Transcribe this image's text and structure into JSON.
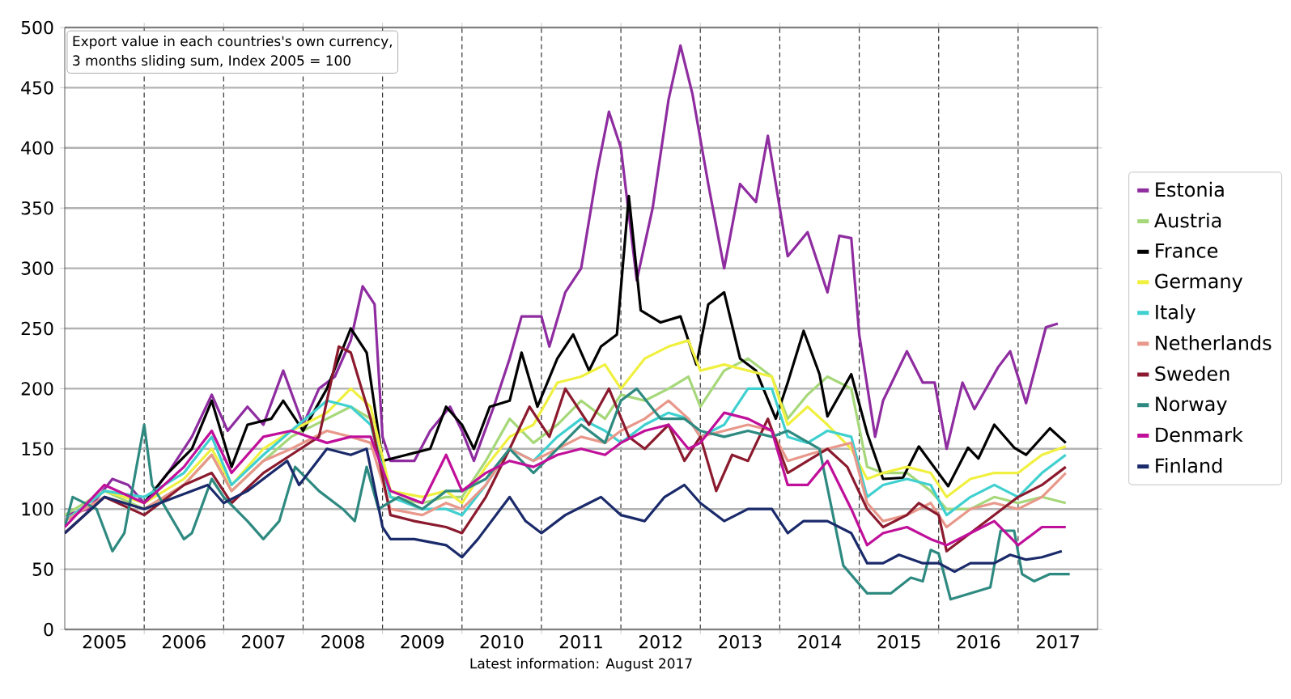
{
  "chart_data": {
    "type": "line",
    "annotations": [
      "Export value in each countries's own currency,",
      "3 months sliding sum, Index 2005 = 100"
    ],
    "xlabel": "Latest information: August 2017",
    "xlim": [
      2005,
      2018
    ],
    "ylim": [
      0,
      500
    ],
    "yticks": [
      0,
      50,
      100,
      150,
      200,
      250,
      300,
      350,
      400,
      450,
      500
    ],
    "xticks": [
      {
        "value": 2005.5,
        "label": "2005"
      },
      {
        "value": 2006,
        "label": null
      },
      {
        "value": 2006.5,
        "label": "2006"
      },
      {
        "value": 2007,
        "label": null
      },
      {
        "value": 2007.5,
        "label": "2007"
      },
      {
        "value": 2008,
        "label": null
      },
      {
        "value": 2008.5,
        "label": "2008"
      },
      {
        "value": 2009,
        "label": null
      },
      {
        "value": 2009.5,
        "label": "2009"
      },
      {
        "value": 2010,
        "label": null
      },
      {
        "value": 2010.5,
        "label": "2010"
      },
      {
        "value": 2011,
        "label": null
      },
      {
        "value": 2011.5,
        "label": "2011"
      },
      {
        "value": 2012,
        "label": null
      },
      {
        "value": 2012.5,
        "label": "2012"
      },
      {
        "value": 2013,
        "label": null
      },
      {
        "value": 2013.5,
        "label": "2013"
      },
      {
        "value": 2014,
        "label": null
      },
      {
        "value": 2014.5,
        "label": "2014"
      },
      {
        "value": 2015,
        "label": null
      },
      {
        "value": 2015.5,
        "label": "2015"
      },
      {
        "value": 2016,
        "label": null
      },
      {
        "value": 2016.5,
        "label": "2016"
      },
      {
        "value": 2017,
        "label": null
      },
      {
        "value": 2017.5,
        "label": "2017"
      }
    ],
    "grid": true,
    "legend": "right",
    "x": [
      2005.0,
      2005.5,
      2006.0,
      2006.5,
      2006.85,
      2007.1,
      2007.5,
      2007.85,
      2008.3,
      2008.6,
      2008.85,
      2009.1,
      2009.5,
      2009.8,
      2010.0,
      2010.3,
      2010.6,
      2010.9,
      2011.2,
      2011.5,
      2011.8,
      2012.0,
      2012.3,
      2012.6,
      2012.85,
      2013.0,
      2013.3,
      2013.6,
      2013.9,
      2014.1,
      2014.35,
      2014.6,
      2014.9,
      2015.1,
      2015.3,
      2015.6,
      2015.9,
      2016.1,
      2016.4,
      2016.7,
      2017.0,
      2017.3,
      2017.6
    ],
    "series": [
      {
        "name": "Estonia",
        "color": "#8e2ca0",
        "x": [
          2005.0,
          2005.3,
          2005.6,
          2005.8,
          2006.0,
          2006.3,
          2006.6,
          2006.85,
          2007.05,
          2007.3,
          2007.5,
          2007.75,
          2008.0,
          2008.2,
          2008.4,
          2008.6,
          2008.75,
          2008.9,
          2009.0,
          2009.1,
          2009.4,
          2009.6,
          2009.85,
          2010.0,
          2010.15,
          2010.4,
          2010.6,
          2010.75,
          2011.0,
          2011.1,
          2011.3,
          2011.5,
          2011.7,
          2011.85,
          2012.0,
          2012.2,
          2012.4,
          2012.6,
          2012.75,
          2012.9,
          2013.1,
          2013.3,
          2013.5,
          2013.7,
          2013.85,
          2014.1,
          2014.35,
          2014.6,
          2014.75,
          2014.9,
          2015.0,
          2015.2,
          2015.3,
          2015.6,
          2015.8,
          2015.95,
          2016.1,
          2016.3,
          2016.45,
          2016.75,
          2016.9,
          2017.1,
          2017.35,
          2017.5
        ],
        "values": [
          95,
          100,
          125,
          120,
          105,
          130,
          160,
          195,
          165,
          185,
          170,
          215,
          170,
          200,
          210,
          240,
          285,
          270,
          160,
          140,
          140,
          165,
          185,
          165,
          140,
          185,
          225,
          260,
          260,
          235,
          280,
          300,
          380,
          430,
          400,
          290,
          350,
          440,
          485,
          445,
          370,
          300,
          370,
          355,
          410,
          310,
          330,
          280,
          327,
          325,
          245,
          160,
          190,
          231,
          205,
          205,
          150,
          205,
          183,
          218,
          231,
          188,
          251,
          254
        ]
      },
      {
        "name": "Austria",
        "color": "#a6d87a",
        "values": [
          95,
          115,
          100,
          120,
          145,
          115,
          140,
          160,
          175,
          185,
          175,
          110,
          105,
          110,
          110,
          140,
          175,
          155,
          170,
          190,
          175,
          195,
          190,
          200,
          210,
          185,
          215,
          225,
          210,
          175,
          195,
          210,
          200,
          135,
          130,
          130,
          115,
          100,
          100,
          110,
          105,
          110,
          105
        ]
      },
      {
        "name": "France",
        "color": "#000000",
        "x": [
          2006.0,
          2006.3,
          2006.6,
          2006.85,
          2007.1,
          2007.3,
          2007.6,
          2007.75,
          2008.0,
          2008.3,
          2008.6,
          2008.8,
          2009.0,
          2009.3,
          2009.6,
          2009.8,
          2010.0,
          2010.15,
          2010.35,
          2010.6,
          2010.75,
          2010.95,
          2011.2,
          2011.4,
          2011.6,
          2011.75,
          2011.95,
          2012.1,
          2012.25,
          2012.5,
          2012.75,
          2012.95,
          2013.1,
          2013.3,
          2013.5,
          2013.7,
          2013.95,
          2014.1,
          2014.3,
          2014.5,
          2014.6,
          2014.9,
          2015.1,
          2015.3,
          2015.55,
          2015.75,
          2016.12,
          2016.37,
          2016.5,
          2016.7,
          2016.95,
          2017.1,
          2017.4,
          2017.6
        ],
        "values": [
          105,
          130,
          150,
          190,
          135,
          170,
          175,
          190,
          165,
          200,
          250,
          230,
          140,
          145,
          150,
          185,
          170,
          150,
          185,
          190,
          230,
          185,
          225,
          245,
          215,
          235,
          245,
          360,
          265,
          255,
          260,
          220,
          270,
          280,
          225,
          215,
          175,
          205,
          248,
          212,
          177,
          212,
          163,
          125,
          126,
          152,
          119,
          151,
          142,
          170,
          151,
          145,
          167,
          155
        ]
      },
      {
        "name": "Germany",
        "color": "#f0f040",
        "values": [
          90,
          115,
          105,
          125,
          150,
          120,
          150,
          165,
          180,
          200,
          185,
          115,
          110,
          115,
          105,
          135,
          160,
          170,
          205,
          210,
          220,
          200,
          225,
          235,
          240,
          215,
          220,
          215,
          210,
          170,
          185,
          170,
          150,
          125,
          130,
          135,
          130,
          110,
          125,
          130,
          130,
          145,
          152
        ]
      },
      {
        "name": "Italy",
        "color": "#40d0d0",
        "values": [
          90,
          115,
          110,
          130,
          160,
          120,
          145,
          165,
          190,
          185,
          170,
          110,
          100,
          100,
          95,
          120,
          150,
          140,
          160,
          175,
          165,
          155,
          170,
          180,
          175,
          160,
          170,
          200,
          200,
          160,
          155,
          165,
          160,
          110,
          120,
          125,
          120,
          95,
          110,
          120,
          110,
          130,
          145
        ]
      },
      {
        "name": "Netherlands",
        "color": "#e8988a",
        "values": [
          90,
          110,
          100,
          120,
          145,
          115,
          140,
          150,
          165,
          160,
          155,
          100,
          95,
          105,
          100,
          120,
          150,
          140,
          150,
          160,
          155,
          165,
          175,
          190,
          175,
          160,
          165,
          170,
          165,
          140,
          145,
          150,
          155,
          105,
          90,
          95,
          105,
          85,
          100,
          105,
          100,
          110,
          130
        ]
      },
      {
        "name": "Sweden",
        "color": "#8b1a2e",
        "x": [
          2005.0,
          2005.5,
          2006.0,
          2006.5,
          2006.85,
          2007.1,
          2007.5,
          2007.85,
          2008.2,
          2008.45,
          2008.6,
          2008.85,
          2009.1,
          2009.4,
          2009.8,
          2010.0,
          2010.3,
          2010.6,
          2010.85,
          2011.1,
          2011.3,
          2011.6,
          2011.85,
          2012.1,
          2012.3,
          2012.6,
          2012.8,
          2013.0,
          2013.2,
          2013.4,
          2013.6,
          2013.85,
          2014.1,
          2014.35,
          2014.6,
          2014.85,
          2015.1,
          2015.3,
          2015.6,
          2015.75,
          2016.0,
          2016.1,
          2016.4,
          2016.7,
          2017.0,
          2017.3,
          2017.6
        ],
        "values": [
          80,
          110,
          95,
          120,
          130,
          105,
          130,
          145,
          160,
          235,
          230,
          175,
          95,
          90,
          85,
          80,
          110,
          150,
          185,
          160,
          200,
          170,
          200,
          160,
          150,
          170,
          140,
          160,
          115,
          145,
          140,
          175,
          130,
          140,
          150,
          135,
          100,
          85,
          95,
          105,
          95,
          65,
          80,
          95,
          110,
          120,
          135
        ]
      },
      {
        "name": "Norway",
        "color": "#2e8a80",
        "x": [
          2005.0,
          2005.1,
          2005.4,
          2005.6,
          2005.75,
          2006.0,
          2006.1,
          2006.5,
          2006.6,
          2006.85,
          2007.0,
          2007.3,
          2007.5,
          2007.7,
          2007.9,
          2008.2,
          2008.5,
          2008.65,
          2008.8,
          2008.95,
          2009.2,
          2009.5,
          2009.8,
          2010.0,
          2010.3,
          2010.6,
          2010.9,
          2011.2,
          2011.5,
          2011.8,
          2012.0,
          2012.2,
          2012.5,
          2012.8,
          2013.0,
          2013.3,
          2013.6,
          2013.9,
          2014.1,
          2014.5,
          2014.8,
          2015.1,
          2015.4,
          2015.65,
          2015.8,
          2015.9,
          2016.0,
          2016.15,
          2016.65,
          2016.78,
          2016.95,
          2017.05,
          2017.2,
          2017.4,
          2017.65
        ],
        "values": [
          85,
          110,
          100,
          65,
          80,
          170,
          120,
          75,
          80,
          125,
          110,
          90,
          75,
          90,
          135,
          115,
          100,
          90,
          135,
          100,
          110,
          100,
          115,
          115,
          125,
          150,
          130,
          150,
          170,
          155,
          190,
          200,
          175,
          175,
          165,
          160,
          165,
          160,
          165,
          150,
          53,
          30,
          30,
          43,
          40,
          66,
          63,
          25,
          35,
          82,
          82,
          46,
          40,
          46,
          46
        ]
      },
      {
        "name": "Denmark",
        "color": "#c0109a",
        "values": [
          85,
          120,
          105,
          135,
          165,
          130,
          160,
          165,
          155,
          160,
          160,
          115,
          105,
          145,
          115,
          130,
          140,
          135,
          145,
          150,
          145,
          155,
          165,
          170,
          150,
          155,
          180,
          175,
          165,
          120,
          120,
          140,
          100,
          70,
          80,
          85,
          75,
          70,
          80,
          90,
          70,
          85,
          85
        ]
      },
      {
        "name": "Finland",
        "color": "#1a2a6a",
        "x": [
          2005.0,
          2005.5,
          2006.0,
          2006.4,
          2006.8,
          2007.0,
          2007.3,
          2007.6,
          2007.8,
          2007.95,
          2008.3,
          2008.6,
          2008.8,
          2009.0,
          2009.1,
          2009.4,
          2009.8,
          2010.0,
          2010.2,
          2010.6,
          2010.8,
          2011.0,
          2011.3,
          2011.6,
          2011.75,
          2012.0,
          2012.3,
          2012.55,
          2012.8,
          2013.0,
          2013.3,
          2013.6,
          2013.9,
          2014.1,
          2014.3,
          2014.6,
          2014.9,
          2015.1,
          2015.3,
          2015.5,
          2015.8,
          2016.0,
          2016.2,
          2016.4,
          2016.7,
          2016.9,
          2017.1,
          2017.3,
          2017.55
        ],
        "values": [
          80,
          110,
          100,
          110,
          120,
          105,
          115,
          130,
          140,
          120,
          150,
          145,
          150,
          85,
          75,
          75,
          70,
          60,
          75,
          110,
          90,
          80,
          95,
          105,
          110,
          95,
          90,
          110,
          120,
          105,
          90,
          100,
          100,
          80,
          90,
          90,
          80,
          55,
          55,
          62,
          55,
          55,
          48,
          55,
          55,
          62,
          58,
          60,
          65
        ]
      }
    ]
  }
}
